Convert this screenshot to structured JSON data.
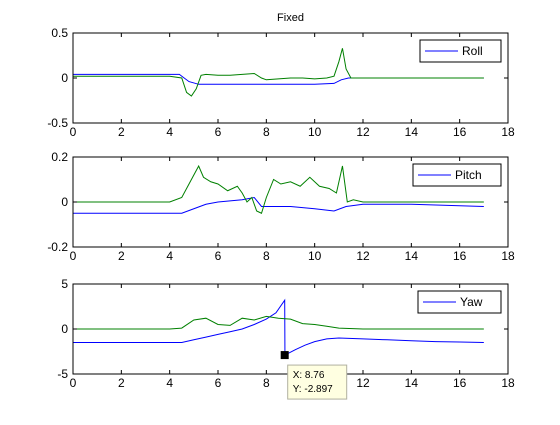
{
  "figure": {
    "title": "Fixed"
  },
  "chart_data": [
    {
      "type": "line",
      "title": "Fixed",
      "xlim": [
        0,
        18
      ],
      "ylim": [
        -0.5,
        0.5
      ],
      "xticks": [
        0,
        2,
        4,
        6,
        8,
        10,
        12,
        14,
        16,
        18
      ],
      "yticks": [
        -0.5,
        0,
        0.5
      ],
      "grid": false,
      "legend_position": "top-right",
      "series": [
        {
          "name": "Roll",
          "color": "#0000ff",
          "x": [
            0,
            4.4,
            4.8,
            5.2,
            6,
            7,
            8,
            9,
            10,
            10.8,
            11.1,
            11.4,
            12,
            14,
            16,
            17
          ],
          "values": [
            0.04,
            0.04,
            -0.04,
            -0.07,
            -0.07,
            -0.07,
            -0.07,
            -0.07,
            -0.07,
            -0.06,
            -0.02,
            0.0,
            0.0,
            0.0,
            0.0,
            0.0
          ]
        },
        {
          "color": "#008000",
          "x": [
            0,
            1,
            2,
            3,
            4,
            4.5,
            4.7,
            4.9,
            5.1,
            5.3,
            5.5,
            6,
            6.5,
            7,
            7.5,
            7.8,
            8,
            8.5,
            9,
            9.5,
            10,
            10.5,
            10.8,
            11.0,
            11.15,
            11.3,
            11.5,
            12,
            13,
            14,
            15,
            16,
            17
          ],
          "values": [
            0.02,
            0.02,
            0.02,
            0.02,
            0.02,
            0.0,
            -0.16,
            -0.2,
            -0.12,
            0.03,
            0.04,
            0.03,
            0.03,
            0.04,
            0.05,
            0.0,
            -0.02,
            -0.01,
            0.0,
            0.0,
            -0.01,
            0.0,
            0.02,
            0.18,
            0.33,
            0.1,
            0.0,
            0.0,
            0.0,
            0.0,
            0.0,
            0.0,
            0.0
          ]
        }
      ]
    },
    {
      "type": "line",
      "xlim": [
        0,
        18
      ],
      "ylim": [
        -0.2,
        0.2
      ],
      "xticks": [
        0,
        2,
        4,
        6,
        8,
        10,
        12,
        14,
        16,
        18
      ],
      "yticks": [
        -0.2,
        0,
        0.2
      ],
      "grid": false,
      "legend_position": "top-right",
      "series": [
        {
          "name": "Pitch",
          "color": "#0000ff",
          "x": [
            0,
            2,
            4.5,
            5,
            5.5,
            6,
            7,
            7.5,
            7.8,
            8.2,
            9,
            10,
            10.8,
            11.3,
            12,
            14,
            17
          ],
          "values": [
            -0.05,
            -0.05,
            -0.05,
            -0.03,
            -0.01,
            0.0,
            0.01,
            0.02,
            -0.02,
            -0.02,
            -0.02,
            -0.03,
            -0.04,
            -0.02,
            -0.01,
            -0.01,
            -0.02
          ]
        },
        {
          "color": "#008000",
          "x": [
            0,
            1,
            2,
            3,
            4,
            4.5,
            4.8,
            5.0,
            5.2,
            5.4,
            5.7,
            6.0,
            6.4,
            6.8,
            7.0,
            7.2,
            7.4,
            7.6,
            7.8,
            8.0,
            8.3,
            8.6,
            9.0,
            9.4,
            9.8,
            10.2,
            10.6,
            10.9,
            11.15,
            11.35,
            11.6,
            12,
            13,
            14,
            15,
            16,
            17
          ],
          "values": [
            0.0,
            0.0,
            0.0,
            0.0,
            0.0,
            0.02,
            0.08,
            0.12,
            0.16,
            0.11,
            0.09,
            0.08,
            0.05,
            0.07,
            0.04,
            0.0,
            0.02,
            -0.04,
            -0.05,
            0.02,
            0.1,
            0.08,
            0.09,
            0.07,
            0.11,
            0.07,
            0.06,
            0.04,
            0.16,
            0.0,
            0.01,
            0.0,
            0.0,
            0.0,
            0.0,
            0.0,
            0.0
          ]
        }
      ]
    },
    {
      "type": "line",
      "xlim": [
        0,
        18
      ],
      "ylim": [
        -5,
        5
      ],
      "xticks": [
        0,
        2,
        4,
        6,
        8,
        10,
        12,
        14,
        16,
        18
      ],
      "yticks": [
        -5,
        0,
        5
      ],
      "grid": false,
      "legend_position": "top-right",
      "series": [
        {
          "name": "Yaw",
          "color": "#0000ff",
          "x": [
            0,
            2,
            4,
            4.5,
            5,
            5.5,
            6,
            6.5,
            7,
            7.5,
            8,
            8.4,
            8.76,
            8.77,
            9.2,
            9.6,
            10,
            10.5,
            11,
            12,
            13,
            14,
            15,
            16,
            17
          ],
          "values": [
            -1.5,
            -1.5,
            -1.5,
            -1.5,
            -1.2,
            -0.9,
            -0.6,
            -0.3,
            0.0,
            0.5,
            1.1,
            1.8,
            3.2,
            -2.897,
            -2.3,
            -1.8,
            -1.4,
            -1.1,
            -1.0,
            -1.1,
            -1.2,
            -1.3,
            -1.4,
            -1.45,
            -1.5
          ]
        },
        {
          "color": "#008000",
          "x": [
            0,
            2,
            4,
            4.5,
            5,
            5.5,
            6,
            6.5,
            7,
            7.5,
            8,
            8.5,
            9,
            9.5,
            10,
            10.5,
            11,
            12,
            14,
            17
          ],
          "values": [
            0,
            0,
            0,
            0.1,
            1.0,
            1.2,
            0.5,
            0.4,
            1.2,
            1.0,
            1.4,
            1.2,
            1.1,
            0.6,
            0.5,
            0.3,
            0.1,
            0,
            0,
            0
          ]
        }
      ],
      "datatip": {
        "x": 8.76,
        "y": -2.897,
        "x_label": "X: 8.76",
        "y_label": "Y: -2.897"
      }
    }
  ]
}
